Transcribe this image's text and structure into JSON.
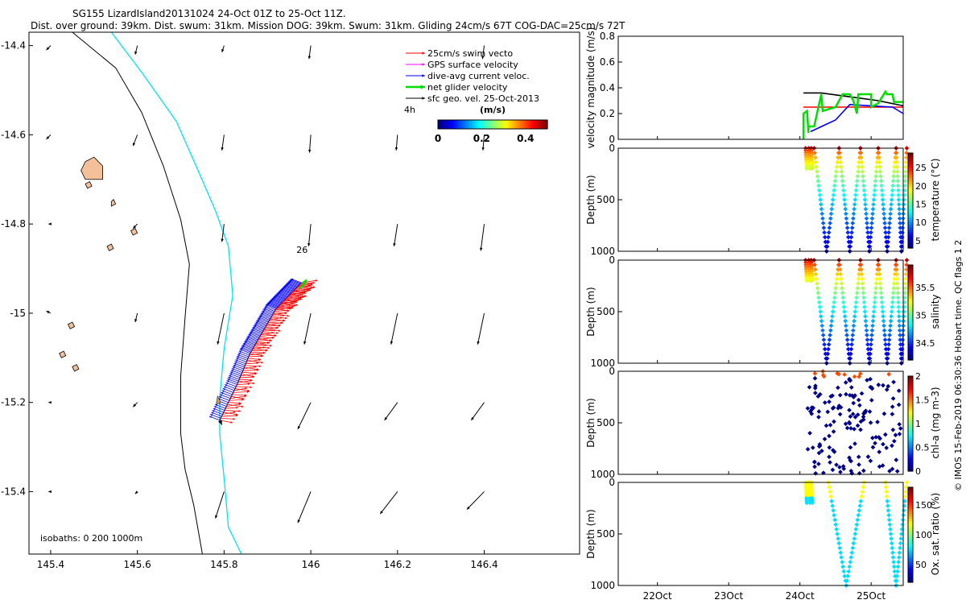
{
  "header": {
    "title": "SG155 LizardIsland20131024 24-Oct 01Z to 25-Oct 11Z.",
    "subtitle": "Dist. over ground: 39km. Dist. swum: 31km. Mission DOG: 39km. Swum: 31km. Gliding 24cm/s 67T COG-DAC=25cm/s 72T"
  },
  "credit": "© IMOS 15-Feb-2019 06:30:36 Hobart time. QC flags 1  2",
  "colors": {
    "swim": "#ff0000",
    "gps": "#ff00ff",
    "dac": "#0000ff",
    "net": "#00dd00",
    "sfc": "#000000",
    "isobath_0": "#000000",
    "isobath_200": "#000000",
    "isobath_1000": "#00e5ee",
    "land": "#f4c09a",
    "colormap": [
      "#00007f",
      "#0000ff",
      "#007fff",
      "#00ffff",
      "#7fff7f",
      "#ffff00",
      "#ff7f00",
      "#ff0000",
      "#7f0000"
    ]
  },
  "chart_data": [
    {
      "type": "map",
      "xlim": [
        145.35,
        146.62
      ],
      "ylim": [
        -15.54,
        -14.37
      ],
      "xticks": [
        145.4,
        145.6,
        145.8,
        146,
        146.2,
        146.4
      ],
      "xtick_labels": [
        "145.4",
        "145.6",
        "145.8",
        "146",
        "146.2",
        "146.4"
      ],
      "yticks": [
        -14.4,
        -14.6,
        -14.8,
        -15,
        -15.2,
        -15.4
      ],
      "ytick_labels": [
        "-14.4",
        "-14.6",
        "-14.8",
        "-15",
        "-15.2",
        "-15.4"
      ],
      "legend": {
        "position": "top-right",
        "items": [
          {
            "label": "25cm/s swim vecto",
            "key": "swim"
          },
          {
            "label": "GPS surface velocity",
            "key": "gps"
          },
          {
            "label": "dive-avg current veloc.",
            "key": "dac"
          },
          {
            "label": "net glider velocity",
            "key": "net"
          },
          {
            "label": "sfc geo. vel. 25-Oct-2013",
            "key": "sfc"
          }
        ],
        "arrow_scale_label": "4h"
      },
      "colorbar": {
        "label": "(m/s)",
        "range": [
          0,
          0.5
        ],
        "ticks": [
          0,
          0.2,
          0.4
        ],
        "tick_labels": [
          "0",
          "0.2",
          "0.4"
        ]
      },
      "annotation": "26",
      "isobaths_label": "isobaths: 0   200  1000m",
      "isobath_200": [
        [
          145.45,
          -14.37
        ],
        [
          145.55,
          -14.45
        ],
        [
          145.61,
          -14.55
        ],
        [
          145.66,
          -14.67
        ],
        [
          145.7,
          -14.79
        ],
        [
          145.72,
          -14.89
        ],
        [
          145.71,
          -15.01
        ],
        [
          145.7,
          -15.14
        ],
        [
          145.7,
          -15.27
        ],
        [
          145.71,
          -15.35
        ],
        [
          145.73,
          -15.43
        ],
        [
          145.75,
          -15.54
        ]
      ],
      "isobath_1000": [
        [
          145.54,
          -14.37
        ],
        [
          145.61,
          -14.46
        ],
        [
          145.69,
          -14.57
        ],
        [
          145.74,
          -14.68
        ],
        [
          145.78,
          -14.77
        ],
        [
          145.81,
          -14.85
        ],
        [
          145.82,
          -14.96
        ],
        [
          145.8,
          -15.08
        ],
        [
          145.79,
          -15.19
        ],
        [
          145.79,
          -15.27
        ],
        [
          145.8,
          -15.37
        ],
        [
          145.81,
          -15.48
        ],
        [
          145.84,
          -15.54
        ]
      ],
      "track": [
        [
          145.79,
          -15.24
        ],
        [
          145.83,
          -15.16
        ],
        [
          145.86,
          -15.09
        ],
        [
          145.89,
          -15.04
        ],
        [
          145.92,
          -14.99
        ],
        [
          145.95,
          -14.96
        ],
        [
          145.98,
          -14.93
        ]
      ],
      "land": [
        [
          [
            145.48,
            -14.66
          ],
          [
            145.5,
            -14.65
          ],
          [
            145.52,
            -14.67
          ],
          [
            145.52,
            -14.7
          ],
          [
            145.48,
            -14.7
          ],
          [
            145.47,
            -14.68
          ]
        ],
        [
          [
            145.54,
            -14.75
          ],
          [
            145.545,
            -14.745
          ],
          [
            145.55,
            -14.755
          ],
          [
            145.54,
            -14.76
          ]
        ],
        [
          [
            145.48,
            -14.71
          ],
          [
            145.49,
            -14.705
          ],
          [
            145.495,
            -14.715
          ],
          [
            145.485,
            -14.72
          ]
        ],
        [
          [
            145.585,
            -14.815
          ],
          [
            145.595,
            -14.81
          ],
          [
            145.6,
            -14.82
          ],
          [
            145.59,
            -14.825
          ]
        ],
        [
          [
            145.53,
            -14.85
          ],
          [
            145.54,
            -14.845
          ],
          [
            145.545,
            -14.855
          ],
          [
            145.535,
            -14.86
          ]
        ],
        [
          [
            145.44,
            -15.025
          ],
          [
            145.45,
            -15.02
          ],
          [
            145.455,
            -15.03
          ],
          [
            145.445,
            -15.035
          ]
        ],
        [
          [
            145.42,
            -15.09
          ],
          [
            145.43,
            -15.085
          ],
          [
            145.435,
            -15.095
          ],
          [
            145.425,
            -15.1
          ]
        ],
        [
          [
            145.45,
            -15.12
          ],
          [
            145.46,
            -15.115
          ],
          [
            145.465,
            -15.125
          ],
          [
            145.455,
            -15.13
          ]
        ]
      ],
      "sfc_vectors": [
        [
          145.4,
          -14.4,
          -0.01,
          -0.01
        ],
        [
          145.6,
          -14.4,
          -0.005,
          -0.02
        ],
        [
          145.8,
          -14.4,
          -0.005,
          -0.015
        ],
        [
          146.0,
          -14.4,
          -0.004,
          -0.03
        ],
        [
          146.4,
          -14.4,
          -0.004,
          -0.03
        ],
        [
          145.4,
          -14.6,
          -0.01,
          -0.01
        ],
        [
          145.6,
          -14.6,
          -0.01,
          -0.025
        ],
        [
          145.8,
          -14.6,
          -0.005,
          -0.035
        ],
        [
          146.0,
          -14.6,
          -0.003,
          -0.04
        ],
        [
          146.2,
          -14.6,
          -0.003,
          -0.035
        ],
        [
          146.4,
          -14.6,
          -0.003,
          -0.035
        ],
        [
          145.4,
          -14.8,
          -0.005,
          0.0
        ],
        [
          145.6,
          -14.8,
          -0.01,
          -0.01
        ],
        [
          145.8,
          -14.8,
          -0.005,
          -0.04
        ],
        [
          146.0,
          -14.8,
          -0.005,
          -0.05
        ],
        [
          146.2,
          -14.8,
          -0.008,
          -0.05
        ],
        [
          146.4,
          -14.8,
          -0.008,
          -0.06
        ],
        [
          145.4,
          -15.0,
          -0.01,
          0.005
        ],
        [
          145.6,
          -15.0,
          -0.005,
          -0.02
        ],
        [
          145.8,
          -15.0,
          -0.015,
          -0.07
        ],
        [
          146.0,
          -15.0,
          -0.015,
          -0.07
        ],
        [
          146.2,
          -15.0,
          -0.015,
          -0.07
        ],
        [
          146.4,
          -15.0,
          -0.015,
          -0.07
        ],
        [
          145.4,
          -15.2,
          -0.005,
          0.0
        ],
        [
          145.6,
          -15.2,
          -0.01,
          -0.01
        ],
        [
          146.0,
          -15.2,
          -0.03,
          -0.06
        ],
        [
          146.2,
          -15.2,
          -0.03,
          -0.04
        ],
        [
          146.4,
          -15.2,
          -0.03,
          -0.04
        ],
        [
          145.4,
          -15.4,
          -0.005,
          0.0
        ],
        [
          145.6,
          -15.4,
          -0.005,
          -0.005
        ],
        [
          145.8,
          -15.4,
          -0.02,
          -0.06
        ],
        [
          146.0,
          -15.4,
          -0.03,
          -0.07
        ],
        [
          146.2,
          -15.4,
          -0.04,
          -0.05
        ],
        [
          146.4,
          -15.4,
          -0.04,
          -0.04
        ]
      ]
    },
    {
      "type": "line",
      "ylabel": "velocity magnitude (m/s)",
      "ylim": [
        0,
        0.8
      ],
      "yticks": [
        0,
        0.2,
        0.4,
        0.6,
        0.8
      ],
      "ytick_labels": [
        "0",
        "0.2",
        "0.4",
        "0.6",
        "0.8"
      ],
      "series": [
        {
          "key": "swim",
          "x": [
            24.05,
            25.45
          ],
          "y": [
            0.25,
            0.25
          ]
        },
        {
          "key": "sfc",
          "x": [
            24.05,
            24.3,
            24.7,
            25.1,
            25.45
          ],
          "y": [
            0.36,
            0.36,
            0.33,
            0.3,
            0.26
          ]
        },
        {
          "key": "dac",
          "x": [
            24.15,
            24.5,
            24.7,
            25.0,
            25.3,
            25.45
          ],
          "y": [
            0.06,
            0.15,
            0.27,
            0.26,
            0.25,
            0.2
          ]
        },
        {
          "key": "net",
          "x": [
            24.05,
            24.05,
            24.1,
            24.12,
            24.12,
            24.2,
            24.3,
            24.32,
            24.5,
            24.6,
            24.62,
            24.7,
            24.75,
            24.8,
            24.82,
            24.9,
            24.95,
            25.0,
            25.0,
            25.1,
            25.2,
            25.22,
            25.3,
            25.32,
            25.45
          ],
          "y": [
            0.0,
            0.2,
            0.22,
            0.05,
            0.1,
            0.1,
            0.35,
            0.22,
            0.25,
            0.35,
            0.35,
            0.35,
            0.3,
            0.2,
            0.35,
            0.35,
            0.35,
            0.35,
            0.25,
            0.28,
            0.37,
            0.35,
            0.35,
            0.29,
            0.29
          ]
        }
      ]
    },
    {
      "type": "scatter",
      "ylabel": "Depth (m)",
      "clabel": "temperature (°C)",
      "ylim": [
        1000,
        0
      ],
      "yticks": [
        0,
        500,
        1000
      ],
      "ytick_labels": [
        "0",
        "500",
        "1000"
      ],
      "crange": [
        3,
        29
      ],
      "cticks": [
        5,
        10,
        15,
        20,
        25
      ],
      "ctick_labels": [
        "5",
        "10",
        "15",
        "20",
        "25"
      ],
      "profile": {
        "dive_starts": [
          24.08,
          24.12,
          24.16
        ],
        "cycles": [
          [
            24.2,
            24.55
          ],
          [
            24.55,
            24.85
          ],
          [
            24.85,
            25.1
          ],
          [
            25.1,
            25.35
          ],
          [
            25.35,
            25.5
          ]
        ],
        "shallow_depth": 200,
        "max_depth": 1000
      }
    },
    {
      "type": "scatter",
      "ylabel": "Depth (m)",
      "clabel": "salinity",
      "ylim": [
        1000,
        0
      ],
      "yticks": [
        0,
        500,
        1000
      ],
      "ytick_labels": [
        "0",
        "500",
        "1000"
      ],
      "crange": [
        34.2,
        35.9
      ],
      "cticks": [
        34.5,
        35,
        35.5
      ],
      "ctick_labels": [
        "34.5",
        "35",
        "35.5"
      ],
      "profile": {
        "dive_starts": [
          24.08,
          24.12,
          24.16
        ],
        "cycles": [
          [
            24.2,
            24.55
          ],
          [
            24.55,
            24.85
          ],
          [
            24.85,
            25.1
          ],
          [
            25.1,
            25.35
          ],
          [
            25.35,
            25.5
          ]
        ],
        "shallow_depth": 200,
        "max_depth": 1000
      }
    },
    {
      "type": "scatter",
      "ylabel": "Depth (m)",
      "clabel": "chl-a (mg m-3)",
      "ylim": [
        1000,
        0
      ],
      "yticks": [
        0,
        500,
        1000
      ],
      "ytick_labels": [
        "0",
        "500",
        "1000"
      ],
      "crange": [
        0,
        2
      ],
      "cticks": [
        0,
        0.5,
        1,
        1.5,
        2
      ],
      "ctick_labels": [
        "0",
        "0.5",
        "1",
        "1.5",
        "2"
      ],
      "profile": {
        "sparse": true,
        "time_range": [
          24.1,
          25.45
        ],
        "max_depth": 1000
      }
    },
    {
      "type": "scatter",
      "ylabel": "Depth (m)",
      "clabel": "Ox. sat. ratio (%)",
      "ylim": [
        1000,
        0
      ],
      "yticks": [
        0,
        500,
        1000
      ],
      "ytick_labels": [
        "0",
        "500",
        "1000"
      ],
      "crange": [
        20,
        180
      ],
      "cticks": [
        50,
        100,
        150
      ],
      "ctick_labels": [
        "50",
        "100",
        "150"
      ],
      "xticks": [
        22,
        23,
        24,
        25
      ],
      "xtick_labels": [
        "22Oct",
        "23Oct",
        "24Oct",
        "25Oct"
      ],
      "xlim": [
        21.45,
        25.45
      ],
      "profile": {
        "dive_starts": [
          24.08,
          24.12,
          24.16
        ],
        "cycles": [
          [
            24.4,
            24.9
          ],
          [
            25.2,
            25.5
          ]
        ],
        "shallow_depth": 200,
        "max_depth": 1000
      }
    }
  ]
}
